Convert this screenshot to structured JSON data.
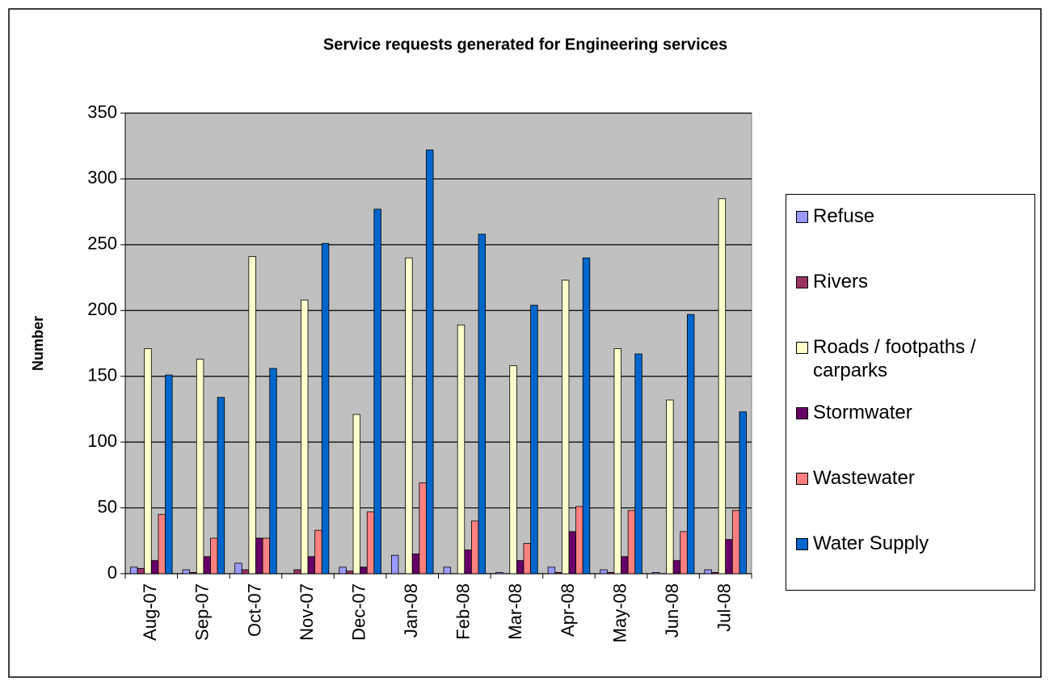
{
  "chart_data": {
    "type": "bar",
    "title": "Service requests generated for Engineering services",
    "y_label": "Number",
    "categories": [
      "Aug-07",
      "Sep-07",
      "Oct-07",
      "Nov-07",
      "Dec-07",
      "Jan-08",
      "Feb-08",
      "Mar-08",
      "Apr-08",
      "May-08",
      "Jun-08",
      "Jul-08"
    ],
    "series": [
      {
        "name": "Refuse",
        "color": "#9999ff",
        "values": [
          5,
          3,
          8,
          0,
          5,
          14,
          5,
          1,
          5,
          3,
          1,
          3
        ]
      },
      {
        "name": "Rivers",
        "color": "#993366",
        "values": [
          4,
          1,
          3,
          3,
          2,
          0,
          0,
          0,
          1,
          1,
          0,
          1
        ]
      },
      {
        "name": "Roads / footpaths / carparks",
        "color": "#ffffcc",
        "values": [
          171,
          163,
          241,
          208,
          121,
          240,
          189,
          158,
          223,
          171,
          132,
          285
        ]
      },
      {
        "name": "Stormwater",
        "color": "#660066",
        "values": [
          10,
          13,
          27,
          13,
          5,
          15,
          18,
          10,
          32,
          13,
          10,
          26
        ]
      },
      {
        "name": "Wastewater",
        "color": "#ff8080",
        "values": [
          45,
          27,
          27,
          33,
          47,
          69,
          40,
          23,
          51,
          48,
          32,
          48
        ]
      },
      {
        "name": "Water Supply",
        "color": "#0066cc",
        "values": [
          151,
          134,
          156,
          251,
          277,
          322,
          258,
          204,
          240,
          167,
          197,
          123
        ]
      }
    ],
    "ylim": [
      0,
      350
    ],
    "yticks": [
      0,
      50,
      100,
      150,
      200,
      250,
      300,
      350
    ],
    "grid": true,
    "legend": "right"
  }
}
